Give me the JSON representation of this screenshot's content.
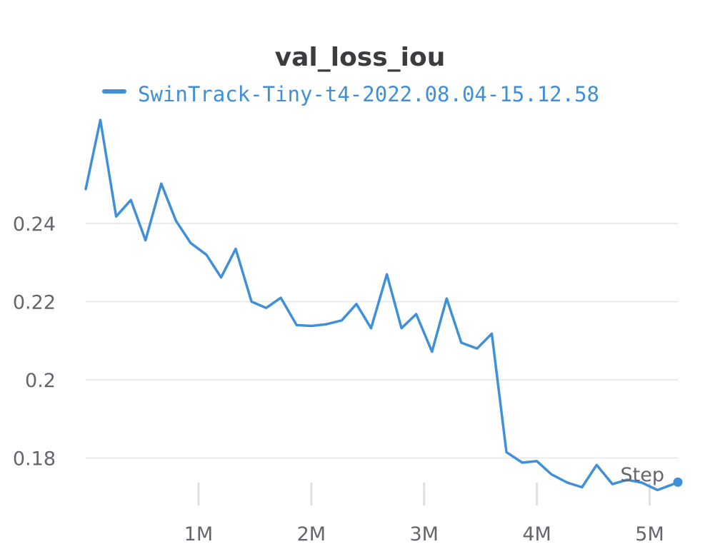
{
  "chart_data": {
    "type": "line",
    "title": "val_loss_iou",
    "xlabel": "Step",
    "ylabel": "",
    "xlim": [
      0,
      5250000
    ],
    "ylim": [
      0.1715,
      0.2665
    ],
    "xticks": [
      1000000,
      2000000,
      3000000,
      4000000,
      5000000
    ],
    "xtick_labels": [
      "1M",
      "2M",
      "3M",
      "4M",
      "5M"
    ],
    "yticks": [
      0.18,
      0.2,
      0.22,
      0.24
    ],
    "ytick_labels": [
      "0.18",
      "0.2",
      "0.22",
      "0.24"
    ],
    "grid": true,
    "legend_position": "top",
    "series": [
      {
        "name": "SwinTrack-Tiny-t4-2022.08.04-15.12.58",
        "color": "#3f8fd9",
        "x": [
          0,
          130000,
          270000,
          400000,
          530000,
          670000,
          800000,
          930000,
          1070000,
          1200000,
          1330000,
          1470000,
          1600000,
          1730000,
          1870000,
          2000000,
          2130000,
          2270000,
          2400000,
          2530000,
          2670000,
          2800000,
          2930000,
          3070000,
          3200000,
          3330000,
          3470000,
          3600000,
          3730000,
          3870000,
          4000000,
          4130000,
          4270000,
          4400000,
          4530000,
          4670000,
          4800000,
          4930000,
          5070000,
          5200000,
          5250000
        ],
        "y": [
          0.2488,
          0.2665,
          0.2418,
          0.246,
          0.2357,
          0.2502,
          0.2407,
          0.235,
          0.232,
          0.2262,
          0.2335,
          0.22,
          0.2184,
          0.221,
          0.214,
          0.2138,
          0.2142,
          0.2152,
          0.2194,
          0.2132,
          0.227,
          0.2132,
          0.2168,
          0.2072,
          0.2208,
          0.2095,
          0.208,
          0.2118,
          0.1815,
          0.1788,
          0.1792,
          0.1758,
          0.1737,
          0.1725,
          0.1782,
          0.1733,
          0.1744,
          0.1737,
          0.1718,
          0.1732,
          0.1738
        ]
      }
    ]
  }
}
